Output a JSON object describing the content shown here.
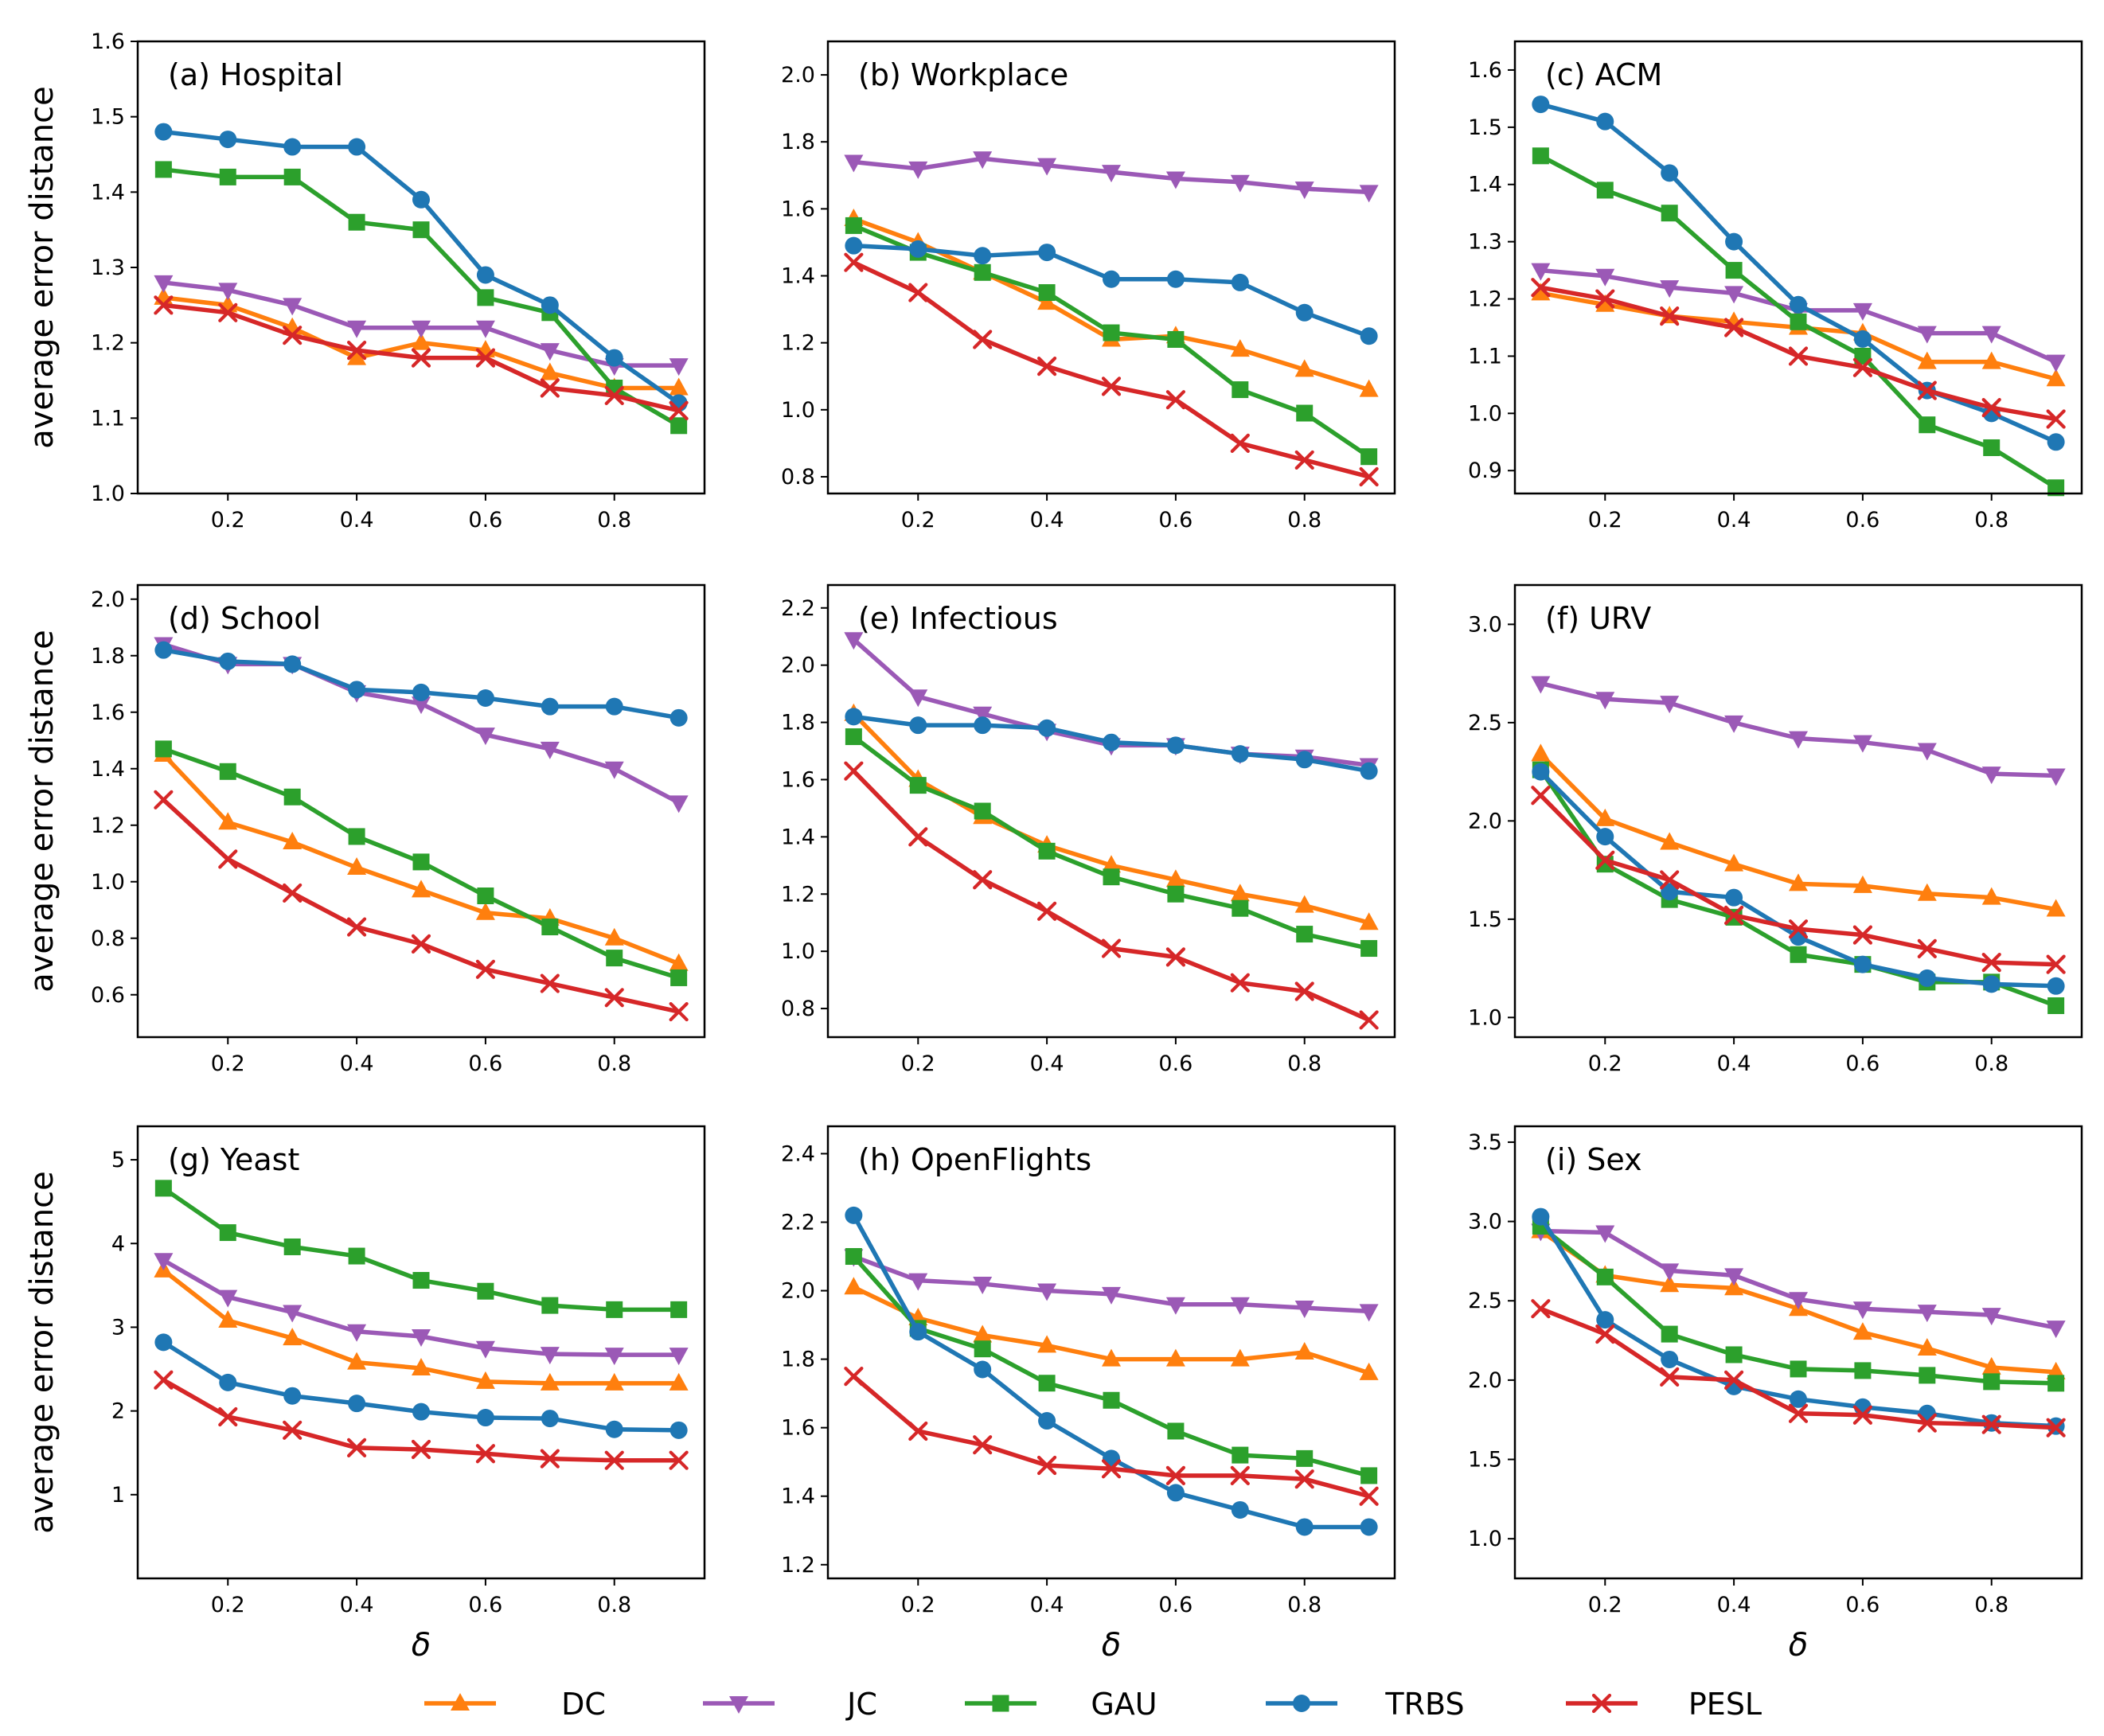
{
  "figure": {
    "y_axis_label": "average error distance",
    "x_axis_label": "δ",
    "x_values": [
      0.1,
      0.2,
      0.3,
      0.4,
      0.5,
      0.6,
      0.7,
      0.8,
      0.9
    ],
    "x_ticks": [
      0.2,
      0.4,
      0.6,
      0.8
    ],
    "x_tick_labels": [
      "0.2",
      "0.4",
      "0.6",
      "0.8"
    ]
  },
  "legend": [
    {
      "key": "DC",
      "label": "DC",
      "color": "#ff7f0e",
      "marker": "triangle-up"
    },
    {
      "key": "JC",
      "label": "JC",
      "color": "#9b59b6",
      "marker": "triangle-down"
    },
    {
      "key": "GAU",
      "label": "GAU",
      "color": "#2ca02c",
      "marker": "square"
    },
    {
      "key": "TRBS",
      "label": "TRBS",
      "color": "#1f77b4",
      "marker": "circle"
    },
    {
      "key": "PESL",
      "label": "PESL",
      "color": "#d62728",
      "marker": "x"
    }
  ],
  "chart_data": [
    {
      "type": "line",
      "title": "(a) Hospital",
      "xlabel": "",
      "ylabel": "average error distance",
      "xlim": [
        0.06,
        0.94
      ],
      "ylim": [
        1.0,
        1.6
      ],
      "yticks": [
        1.0,
        1.1,
        1.2,
        1.3,
        1.4,
        1.5,
        1.6
      ],
      "ytick_labels": [
        "1.0",
        "1.1",
        "1.2",
        "1.3",
        "1.4",
        "1.5",
        "1.6"
      ],
      "x": [
        0.1,
        0.2,
        0.3,
        0.4,
        0.5,
        0.6,
        0.7,
        0.8,
        0.9
      ],
      "series": [
        {
          "name": "DC",
          "values": [
            1.26,
            1.25,
            1.22,
            1.18,
            1.2,
            1.19,
            1.16,
            1.14,
            1.14
          ]
        },
        {
          "name": "JC",
          "values": [
            1.28,
            1.27,
            1.25,
            1.22,
            1.22,
            1.22,
            1.19,
            1.17,
            1.17
          ]
        },
        {
          "name": "GAU",
          "values": [
            1.43,
            1.42,
            1.42,
            1.36,
            1.35,
            1.26,
            1.24,
            1.14,
            1.09
          ]
        },
        {
          "name": "TRBS",
          "values": [
            1.48,
            1.47,
            1.46,
            1.46,
            1.39,
            1.29,
            1.25,
            1.18,
            1.12
          ]
        },
        {
          "name": "PESL",
          "values": [
            1.25,
            1.24,
            1.21,
            1.19,
            1.18,
            1.18,
            1.14,
            1.13,
            1.11
          ]
        }
      ]
    },
    {
      "type": "line",
      "title": "(b) Workplace",
      "xlabel": "",
      "ylabel": "",
      "xlim": [
        0.06,
        0.94
      ],
      "ylim": [
        0.75,
        2.1
      ],
      "yticks": [
        0.8,
        1.0,
        1.2,
        1.4,
        1.6,
        1.8,
        2.0
      ],
      "ytick_labels": [
        "0.8",
        "1.0",
        "1.2",
        "1.4",
        "1.6",
        "1.8",
        "2.0"
      ],
      "x": [
        0.1,
        0.2,
        0.3,
        0.4,
        0.5,
        0.6,
        0.7,
        0.8,
        0.9
      ],
      "series": [
        {
          "name": "DC",
          "values": [
            1.57,
            1.5,
            1.41,
            1.32,
            1.21,
            1.22,
            1.18,
            1.12,
            1.06
          ]
        },
        {
          "name": "JC",
          "values": [
            1.74,
            1.72,
            1.75,
            1.73,
            1.71,
            1.69,
            1.68,
            1.66,
            1.65
          ]
        },
        {
          "name": "GAU",
          "values": [
            1.55,
            1.47,
            1.41,
            1.35,
            1.23,
            1.21,
            1.06,
            0.99,
            0.86
          ]
        },
        {
          "name": "TRBS",
          "values": [
            1.49,
            1.48,
            1.46,
            1.47,
            1.39,
            1.39,
            1.38,
            1.29,
            1.22
          ]
        },
        {
          "name": "PESL",
          "values": [
            1.44,
            1.35,
            1.21,
            1.13,
            1.07,
            1.03,
            0.9,
            0.85,
            0.8
          ]
        }
      ]
    },
    {
      "type": "line",
      "title": "(c) ACM",
      "xlabel": "",
      "ylabel": "",
      "xlim": [
        0.06,
        0.94
      ],
      "ylim": [
        0.86,
        1.65
      ],
      "yticks": [
        0.9,
        1.0,
        1.1,
        1.2,
        1.3,
        1.4,
        1.5,
        1.6
      ],
      "ytick_labels": [
        "0.9",
        "1.0",
        "1.1",
        "1.2",
        "1.3",
        "1.4",
        "1.5",
        "1.6"
      ],
      "x": [
        0.1,
        0.2,
        0.3,
        0.4,
        0.5,
        0.6,
        0.7,
        0.8,
        0.9
      ],
      "series": [
        {
          "name": "DC",
          "values": [
            1.21,
            1.19,
            1.17,
            1.16,
            1.15,
            1.14,
            1.09,
            1.09,
            1.06
          ]
        },
        {
          "name": "JC",
          "values": [
            1.25,
            1.24,
            1.22,
            1.21,
            1.18,
            1.18,
            1.14,
            1.14,
            1.09
          ]
        },
        {
          "name": "GAU",
          "values": [
            1.45,
            1.39,
            1.35,
            1.25,
            1.16,
            1.1,
            0.98,
            0.94,
            0.87
          ]
        },
        {
          "name": "TRBS",
          "values": [
            1.54,
            1.51,
            1.42,
            1.3,
            1.19,
            1.13,
            1.04,
            1.0,
            0.95
          ]
        },
        {
          "name": "PESL",
          "values": [
            1.22,
            1.2,
            1.17,
            1.15,
            1.1,
            1.08,
            1.04,
            1.01,
            0.99
          ]
        }
      ]
    },
    {
      "type": "line",
      "title": "(d) School",
      "xlabel": "",
      "ylabel": "average error distance",
      "xlim": [
        0.06,
        0.94
      ],
      "ylim": [
        0.45,
        2.05
      ],
      "yticks": [
        0.6,
        0.8,
        1.0,
        1.2,
        1.4,
        1.6,
        1.8,
        2.0
      ],
      "ytick_labels": [
        "0.6",
        "0.8",
        "1.0",
        "1.2",
        "1.4",
        "1.6",
        "1.8",
        "2.0"
      ],
      "x": [
        0.1,
        0.2,
        0.3,
        0.4,
        0.5,
        0.6,
        0.7,
        0.8,
        0.9
      ],
      "series": [
        {
          "name": "DC",
          "values": [
            1.45,
            1.21,
            1.14,
            1.05,
            0.97,
            0.89,
            0.87,
            0.8,
            0.71
          ]
        },
        {
          "name": "JC",
          "values": [
            1.84,
            1.77,
            1.77,
            1.67,
            1.63,
            1.52,
            1.47,
            1.4,
            1.28
          ]
        },
        {
          "name": "GAU",
          "values": [
            1.47,
            1.39,
            1.3,
            1.16,
            1.07,
            0.95,
            0.84,
            0.73,
            0.66
          ]
        },
        {
          "name": "TRBS",
          "values": [
            1.82,
            1.78,
            1.77,
            1.68,
            1.67,
            1.65,
            1.62,
            1.62,
            1.58
          ]
        },
        {
          "name": "PESL",
          "values": [
            1.29,
            1.08,
            0.96,
            0.84,
            0.78,
            0.69,
            0.64,
            0.59,
            0.54
          ]
        }
      ]
    },
    {
      "type": "line",
      "title": "(e) Infectious",
      "xlabel": "",
      "ylabel": "",
      "xlim": [
        0.06,
        0.94
      ],
      "ylim": [
        0.7,
        2.28
      ],
      "yticks": [
        0.8,
        1.0,
        1.2,
        1.4,
        1.6,
        1.8,
        2.0,
        2.2
      ],
      "ytick_labels": [
        "0.8",
        "1.0",
        "1.2",
        "1.4",
        "1.6",
        "1.8",
        "2.0",
        "2.2"
      ],
      "x": [
        0.1,
        0.2,
        0.3,
        0.4,
        0.5,
        0.6,
        0.7,
        0.8,
        0.9
      ],
      "series": [
        {
          "name": "DC",
          "values": [
            1.83,
            1.6,
            1.47,
            1.37,
            1.3,
            1.25,
            1.2,
            1.16,
            1.1
          ]
        },
        {
          "name": "JC",
          "values": [
            2.09,
            1.89,
            1.83,
            1.77,
            1.72,
            1.72,
            1.69,
            1.68,
            1.65
          ]
        },
        {
          "name": "GAU",
          "values": [
            1.75,
            1.58,
            1.49,
            1.35,
            1.26,
            1.2,
            1.15,
            1.06,
            1.01
          ]
        },
        {
          "name": "TRBS",
          "values": [
            1.82,
            1.79,
            1.79,
            1.78,
            1.73,
            1.72,
            1.69,
            1.67,
            1.63
          ]
        },
        {
          "name": "PESL",
          "values": [
            1.63,
            1.4,
            1.25,
            1.14,
            1.01,
            0.98,
            0.89,
            0.86,
            0.76
          ]
        }
      ]
    },
    {
      "type": "line",
      "title": "(f) URV",
      "xlabel": "",
      "ylabel": "",
      "xlim": [
        0.06,
        0.94
      ],
      "ylim": [
        0.9,
        3.2
      ],
      "yticks": [
        1.0,
        1.5,
        2.0,
        2.5,
        3.0
      ],
      "ytick_labels": [
        "1.0",
        "1.5",
        "2.0",
        "2.5",
        "3.0"
      ],
      "x": [
        0.1,
        0.2,
        0.3,
        0.4,
        0.5,
        0.6,
        0.7,
        0.8,
        0.9
      ],
      "series": [
        {
          "name": "DC",
          "values": [
            2.34,
            2.01,
            1.89,
            1.78,
            1.68,
            1.67,
            1.63,
            1.61,
            1.55
          ]
        },
        {
          "name": "JC",
          "values": [
            2.7,
            2.62,
            2.6,
            2.5,
            2.42,
            2.4,
            2.36,
            2.24,
            2.23
          ]
        },
        {
          "name": "GAU",
          "values": [
            2.26,
            1.78,
            1.6,
            1.51,
            1.32,
            1.27,
            1.18,
            1.18,
            1.06
          ]
        },
        {
          "name": "TRBS",
          "values": [
            2.25,
            1.92,
            1.64,
            1.61,
            1.41,
            1.27,
            1.2,
            1.17,
            1.16
          ]
        },
        {
          "name": "PESL",
          "values": [
            2.13,
            1.8,
            1.7,
            1.52,
            1.45,
            1.42,
            1.35,
            1.28,
            1.27
          ]
        }
      ]
    },
    {
      "type": "line",
      "title": "(g) Yeast",
      "xlabel": "δ",
      "ylabel": "average error distance",
      "xlim": [
        0.06,
        0.94
      ],
      "ylim": [
        0.0,
        5.4
      ],
      "yticks": [
        1,
        2,
        3,
        4,
        5
      ],
      "ytick_labels": [
        "1",
        "2",
        "3",
        "4",
        "5"
      ],
      "x": [
        0.1,
        0.2,
        0.3,
        0.4,
        0.5,
        0.6,
        0.7,
        0.8,
        0.9
      ],
      "series": [
        {
          "name": "DC",
          "values": [
            3.68,
            3.08,
            2.87,
            2.58,
            2.51,
            2.35,
            2.33,
            2.33,
            2.33
          ]
        },
        {
          "name": "JC",
          "values": [
            3.8,
            3.36,
            3.18,
            2.95,
            2.89,
            2.75,
            2.68,
            2.67,
            2.67
          ]
        },
        {
          "name": "GAU",
          "values": [
            4.66,
            4.13,
            3.96,
            3.85,
            3.56,
            3.43,
            3.26,
            3.21,
            3.21
          ]
        },
        {
          "name": "TRBS",
          "values": [
            2.82,
            2.34,
            2.18,
            2.09,
            1.99,
            1.92,
            1.91,
            1.78,
            1.77
          ]
        },
        {
          "name": "PESL",
          "values": [
            2.37,
            1.93,
            1.77,
            1.56,
            1.54,
            1.49,
            1.43,
            1.41,
            1.41
          ]
        }
      ]
    },
    {
      "type": "line",
      "title": "(h) OpenFlights",
      "xlabel": "δ",
      "ylabel": "",
      "xlim": [
        0.06,
        0.94
      ],
      "ylim": [
        1.16,
        2.48
      ],
      "yticks": [
        1.2,
        1.4,
        1.6,
        1.8,
        2.0,
        2.2,
        2.4
      ],
      "ytick_labels": [
        "1.2",
        "1.4",
        "1.6",
        "1.8",
        "2.0",
        "2.2",
        "2.4"
      ],
      "x": [
        0.1,
        0.2,
        0.3,
        0.4,
        0.5,
        0.6,
        0.7,
        0.8,
        0.9
      ],
      "series": [
        {
          "name": "DC",
          "values": [
            2.01,
            1.92,
            1.87,
            1.84,
            1.8,
            1.8,
            1.8,
            1.82,
            1.76
          ]
        },
        {
          "name": "JC",
          "values": [
            2.1,
            2.03,
            2.02,
            2.0,
            1.99,
            1.96,
            1.96,
            1.95,
            1.94
          ]
        },
        {
          "name": "GAU",
          "values": [
            2.1,
            1.89,
            1.83,
            1.73,
            1.68,
            1.59,
            1.52,
            1.51,
            1.46
          ]
        },
        {
          "name": "TRBS",
          "values": [
            2.22,
            1.88,
            1.77,
            1.62,
            1.51,
            1.41,
            1.36,
            1.31,
            1.31
          ]
        },
        {
          "name": "PESL",
          "values": [
            1.75,
            1.59,
            1.55,
            1.49,
            1.48,
            1.46,
            1.46,
            1.45,
            1.4
          ]
        }
      ]
    },
    {
      "type": "line",
      "title": "(i) Sex",
      "xlabel": "δ",
      "ylabel": "",
      "xlim": [
        0.06,
        0.94
      ],
      "ylim": [
        0.75,
        3.6
      ],
      "yticks": [
        1.0,
        1.5,
        2.0,
        2.5,
        3.0,
        3.5
      ],
      "ytick_labels": [
        "1.0",
        "1.5",
        "2.0",
        "2.5",
        "3.0",
        "3.5"
      ],
      "x": [
        0.1,
        0.2,
        0.3,
        0.4,
        0.5,
        0.6,
        0.7,
        0.8,
        0.9
      ],
      "series": [
        {
          "name": "DC",
          "values": [
            2.94,
            2.66,
            2.6,
            2.58,
            2.45,
            2.3,
            2.2,
            2.08,
            2.05
          ]
        },
        {
          "name": "JC",
          "values": [
            2.94,
            2.93,
            2.69,
            2.66,
            2.51,
            2.45,
            2.43,
            2.41,
            2.33
          ]
        },
        {
          "name": "GAU",
          "values": [
            2.97,
            2.65,
            2.29,
            2.16,
            2.07,
            2.06,
            2.03,
            1.99,
            1.98
          ]
        },
        {
          "name": "TRBS",
          "values": [
            3.03,
            2.38,
            2.13,
            1.96,
            1.88,
            1.83,
            1.79,
            1.73,
            1.71
          ]
        },
        {
          "name": "PESL",
          "values": [
            2.45,
            2.29,
            2.02,
            2.0,
            1.79,
            1.78,
            1.73,
            1.72,
            1.7
          ]
        }
      ]
    }
  ]
}
